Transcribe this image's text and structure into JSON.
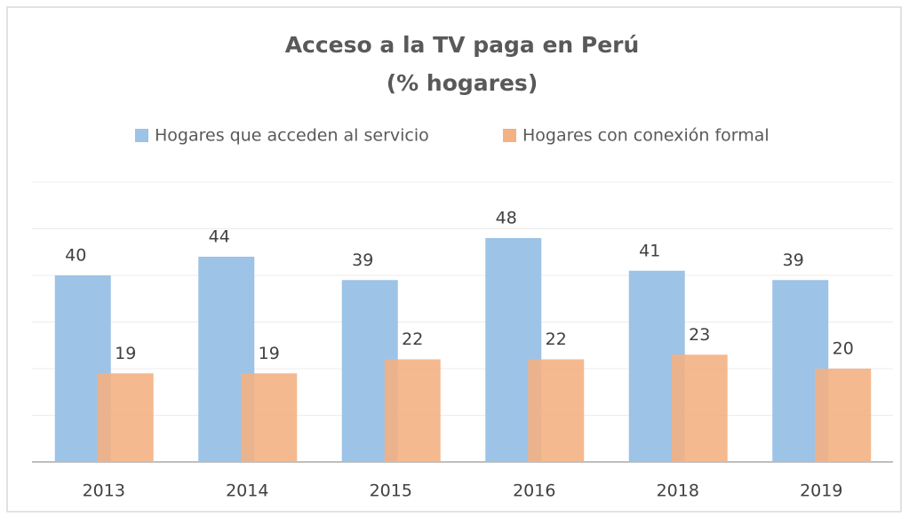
{
  "chart_data": {
    "type": "bar",
    "title": "Acceso a la TV paga en Perú",
    "subtitle": "(% hogares)",
    "categories": [
      "2013",
      "2014",
      "2015",
      "2016",
      "2018",
      "2019"
    ],
    "series": [
      {
        "name": "Hogares que acceden al servicio",
        "color": "#9dc3e6",
        "values": [
          40,
          44,
          39,
          48,
          41,
          39
        ]
      },
      {
        "name": "Hogares con conexión formal",
        "color": "#f4b183",
        "values": [
          19,
          19,
          22,
          22,
          23,
          20
        ]
      }
    ],
    "ylim": [
      0,
      60
    ],
    "yticks": [
      0,
      10,
      20,
      30,
      40,
      50,
      60
    ],
    "grid": true,
    "legend": "top"
  }
}
